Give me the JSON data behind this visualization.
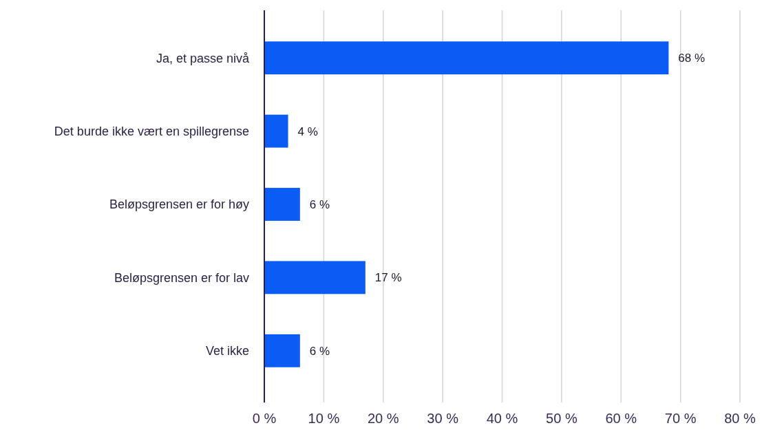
{
  "chart_data": {
    "type": "bar",
    "orientation": "horizontal",
    "categories": [
      "Ja, et passe nivå",
      "Det burde ikke vært en spillegrense",
      "Beløpsgrensen er for høy",
      "Beløpsgrensen er for lav",
      "Vet ikke"
    ],
    "values": [
      68,
      4,
      6,
      17,
      6
    ],
    "value_labels": [
      "68 %",
      "4 %",
      "6 %",
      "17 %",
      "6 %"
    ],
    "color": "#0a5cf5",
    "xlim": [
      0,
      80
    ],
    "xticks": [
      {
        "value": 0,
        "label": "0 %"
      },
      {
        "value": 10,
        "label": "10 %"
      },
      {
        "value": 20,
        "label": "20 %"
      },
      {
        "value": 30,
        "label": "30 %"
      },
      {
        "value": 40,
        "label": "40 %"
      },
      {
        "value": 50,
        "label": "50 %"
      },
      {
        "value": 60,
        "label": "60 %"
      },
      {
        "value": 70,
        "label": "70 %"
      },
      {
        "value": 80,
        "label": "80 %"
      }
    ],
    "grid": "x"
  }
}
